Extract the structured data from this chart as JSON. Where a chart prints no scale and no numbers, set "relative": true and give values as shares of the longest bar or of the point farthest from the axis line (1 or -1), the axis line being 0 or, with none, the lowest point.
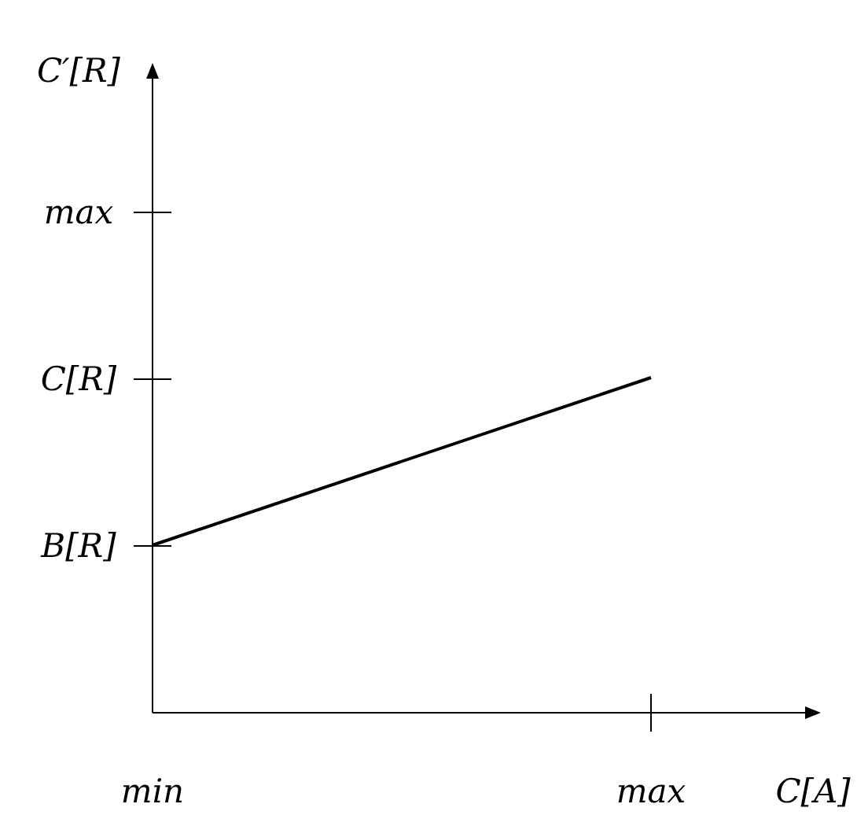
{
  "chart_data": {
    "type": "line",
    "relative": true,
    "xlabel": "C[A]",
    "categories": [
      "min",
      "max"
    ],
    "annotations": [
      "C′[R]",
      "B[R]",
      "C[R]",
      "max"
    ],
    "series": [
      {
        "color": "#000000",
        "values": [
          0.5,
          1
        ]
      }
    ]
  }
}
